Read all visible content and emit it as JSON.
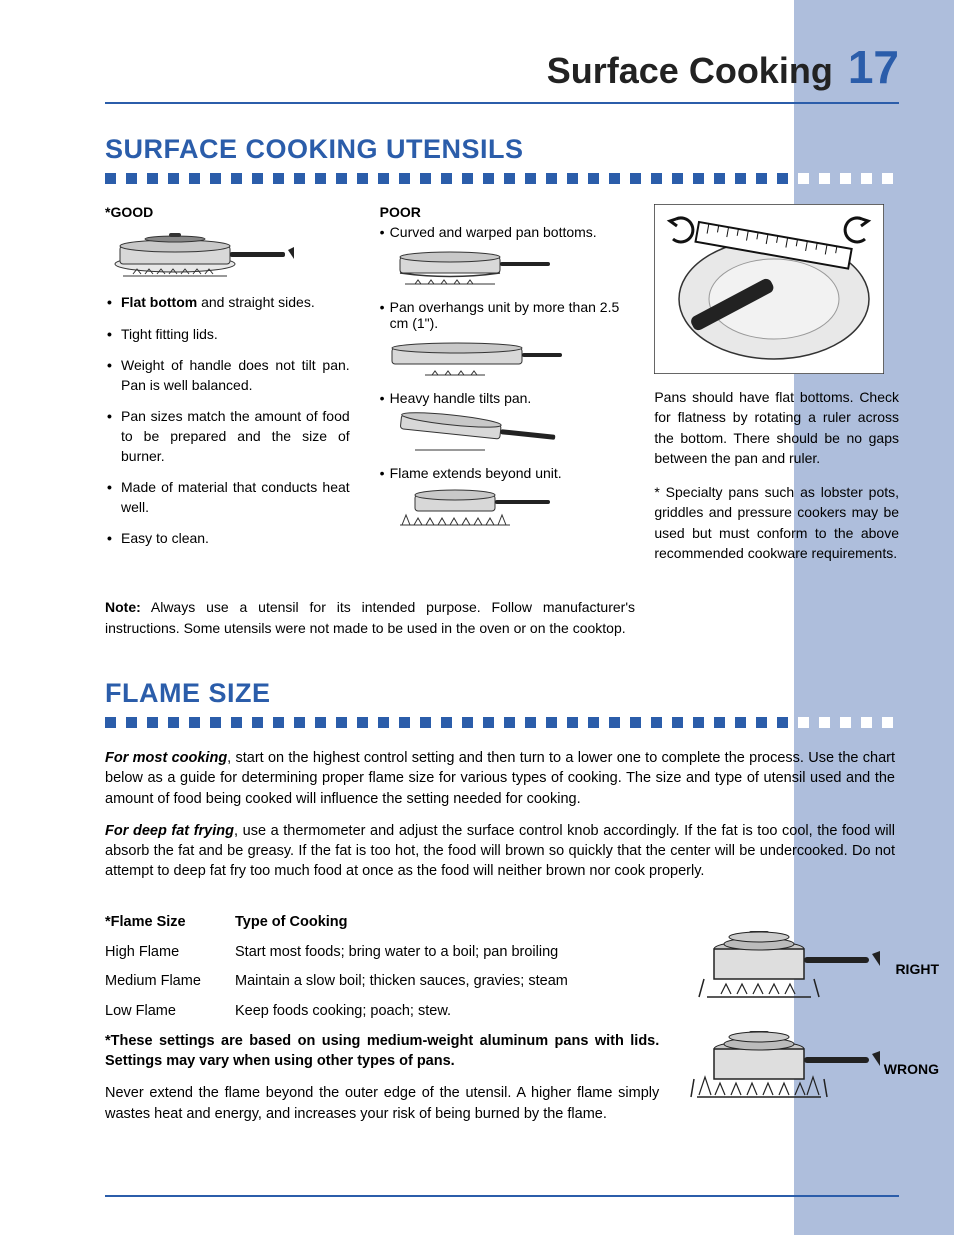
{
  "header": {
    "title": "Surface Cooking",
    "page_number": "17"
  },
  "colors": {
    "brand_blue": "#2b5daa",
    "side_column": "#aebedc",
    "text": "#222222"
  },
  "section1": {
    "heading": "SURFACE COOKING UTENSILS",
    "good_label": "*GOOD",
    "good_items_html": {
      "i0": {
        "pre": "",
        "bold": "Flat bottom",
        "rest": " and straight sides."
      },
      "i1": "Tight fitting lids.",
      "i2": "Weight of handle does not tilt pan. Pan is well balanced.",
      "i3": "Pan sizes match the amount of food to be prepared and the size of burner.",
      "i4": "Made of material that conducts heat well.",
      "i5": "Easy to clean."
    },
    "poor_label": "POOR",
    "poor_items": {
      "p0": "Curved and warped pan bottoms.",
      "p1": "Pan overhangs unit by more than 2.5 cm (1\").",
      "p2": "Heavy handle tilts pan.",
      "p3": "Flame extends beyond unit."
    },
    "side_text1": "Pans should have flat bottoms. Check for flatness by rotating a ruler across the bottom. There should be no gaps between the pan and ruler.",
    "side_text2": "* Specialty pans such as lobster pots, griddles and pressure cookers may be used but must conform to the above recommended cookware requirements.",
    "note_label": "Note:",
    "note_text": " Always use a utensil for its intended purpose. Follow manufacturer's instructions. Some utensils were not made to be used in the oven or on the cooktop."
  },
  "section2": {
    "heading": "FLAME SIZE",
    "para1_lead": "For most cooking",
    "para1_rest": ", start on the highest control setting and then turn to a lower one to complete the process. Use the chart below as a guide for determining proper flame size for various types of cooking. The size and type of utensil used and the amount of food being cooked will influence the setting needed for cooking.",
    "para2_lead": "For deep fat frying",
    "para2_rest": ", use a thermometer and adjust the surface control knob accordingly. If the fat is too cool, the food will absorb the fat and be greasy. If the fat is too hot, the food will brown so quickly that the center will be undercooked. Do not attempt to deep fat fry too much food at once as the food will neither brown nor cook properly.",
    "table": {
      "h1": "*Flame Size",
      "h2": "Type of Cooking",
      "rows": {
        "r0": {
          "c1": "High Flame",
          "c2": "Start most foods; bring water to a boil; pan broiling"
        },
        "r1": {
          "c1": "Medium Flame",
          "c2": "Maintain a slow boil; thicken sauces, gravies; steam"
        },
        "r2": {
          "c1": "Low Flame",
          "c2": "Keep foods cooking; poach; stew."
        }
      }
    },
    "table_note": "*These settings are based on using medium-weight aluminum pans with lids. Settings may vary when using other types of pans.",
    "never_text": "Never extend the flame beyond the outer edge of the utensil. A higher flame simply wastes heat and energy, and increases your risk of being burned by the flame.",
    "right_label": "RIGHT",
    "wrong_label": "WRONG"
  }
}
